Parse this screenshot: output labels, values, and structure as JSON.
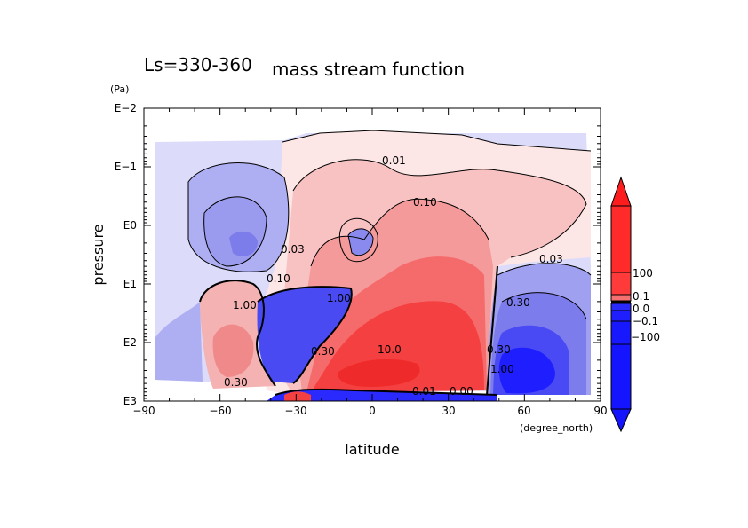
{
  "chart_data": {
    "type": "heatmap",
    "subtype": "filled contour",
    "title": "mass stream function",
    "subtitle": "Ls=330-360",
    "xlabel": "latitude",
    "xunit": "(degree_north)",
    "ylabel": "pressure",
    "yunit": "(Pa)",
    "xlim": [
      -90,
      90
    ],
    "ylim_log10": [
      3,
      -2
    ],
    "xticks": [
      -90,
      -60,
      -30,
      0,
      30,
      60,
      90
    ],
    "xtick_labels": [
      "−90",
      "−60",
      "−30",
      "0",
      "30",
      "60",
      "90"
    ],
    "yticks_log10": [
      -2,
      -1,
      0,
      1,
      2,
      3
    ],
    "ytick_labels": [
      "E−2",
      "E−1",
      "E0",
      "E1",
      "E2",
      "E3"
    ],
    "colorbar": {
      "labels": [
        "100",
        "0.1",
        "−100"
      ],
      "overlapping_labels": [
        "0.1",
        "0.0",
        "−0.1"
      ],
      "extend": "both",
      "max_color": "#ff1c1c",
      "min_color": "#1414ff"
    },
    "contour_labels": [
      "0.01",
      "0.10",
      "0.03",
      "0.30",
      "10.0",
      "1.00",
      "0.10",
      "0.30",
      "1.00",
      "0.30",
      "0.03",
      "0.30",
      "1.00",
      "0.01",
      "0.00"
    ],
    "features": [
      {
        "sign": "positive",
        "center_lat": 15,
        "center_log10p": 2.5,
        "peak_level": "10.0"
      },
      {
        "sign": "negative",
        "center_lat": 60,
        "center_log10p": 2.7
      },
      {
        "sign": "negative",
        "center_lat": -55,
        "center_log10p": 0.5
      },
      {
        "sign": "negative",
        "center_lat": -5,
        "center_log10p": 0.3
      },
      {
        "sign": "positive",
        "center_lat": -60,
        "center_log10p": 2.0
      }
    ]
  }
}
